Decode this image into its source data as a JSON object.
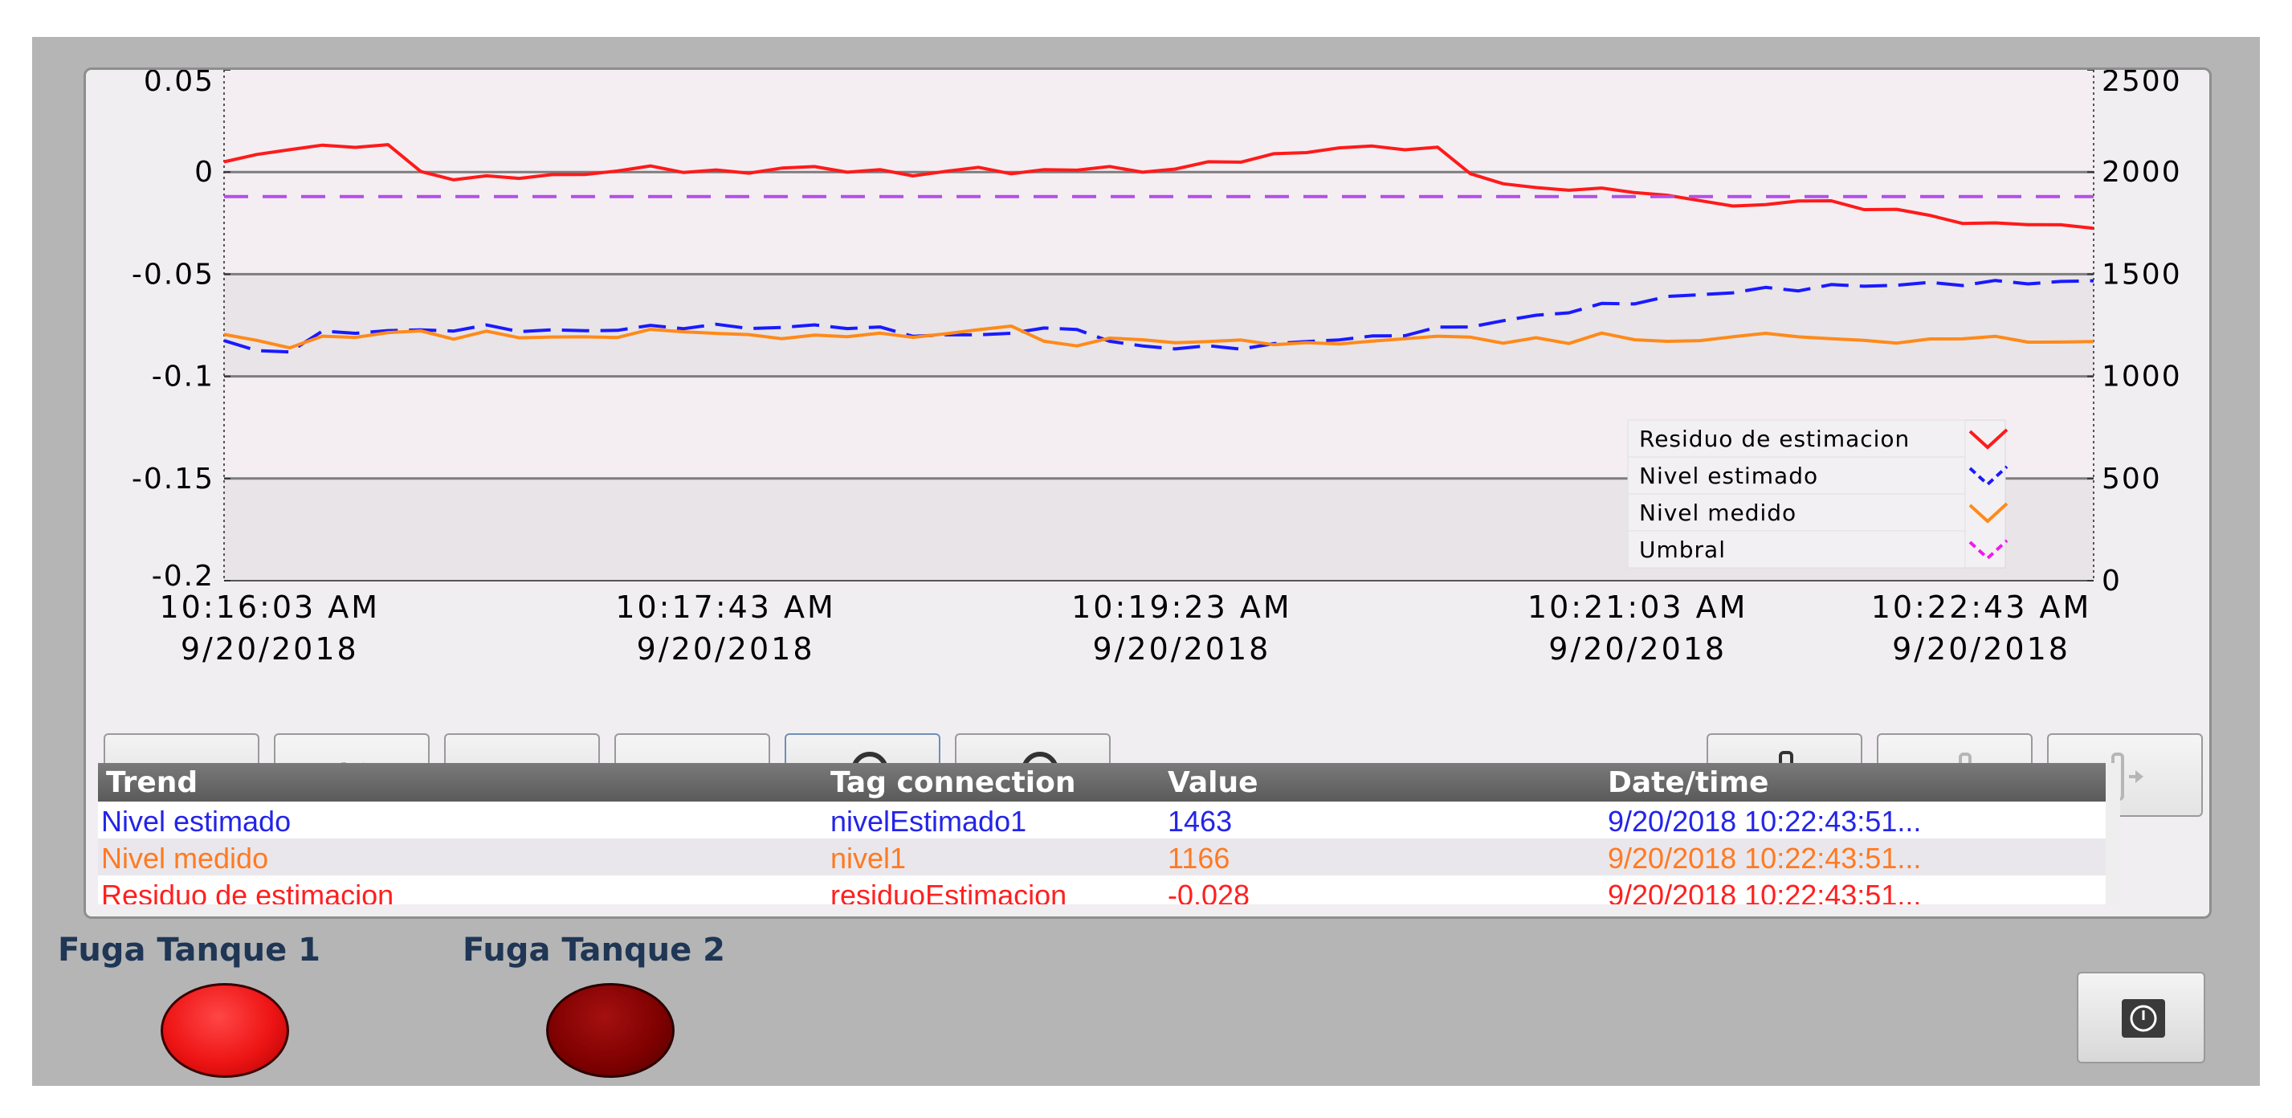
{
  "left_axis": {
    "ticks": [
      "0.05",
      "0",
      "-0.05",
      "-0.1",
      "-0.15",
      "-0.2"
    ]
  },
  "right_axis": {
    "ticks": [
      "2500",
      "2000",
      "1500",
      "1000",
      "500",
      "0"
    ]
  },
  "time_axis": {
    "ticks": [
      {
        "time": "10:16:03 AM",
        "date": "9/20/2018"
      },
      {
        "time": "10:17:43 AM",
        "date": "9/20/2018"
      },
      {
        "time": "10:19:23 AM",
        "date": "9/20/2018"
      },
      {
        "time": "10:21:03 AM",
        "date": "9/20/2018"
      },
      {
        "time": "10:22:43 AM",
        "date": "9/20/2018"
      }
    ]
  },
  "legend": [
    {
      "label": "Residuo de estimacion",
      "color": "#ff1a1a",
      "style": "solid"
    },
    {
      "label": "Nivel estimado",
      "color": "#1a1aff",
      "style": "dashed"
    },
    {
      "label": "Nivel medido",
      "color": "#ff8a1a",
      "style": "solid"
    },
    {
      "label": "Umbral",
      "color": "#ee1aee",
      "style": "dashed"
    }
  ],
  "chart_data": {
    "type": "line",
    "x_range": [
      "10:15:53 AM",
      "10:22:43 AM"
    ],
    "y_left_range": [
      -0.2,
      0.05
    ],
    "y_right_range": [
      0,
      2500
    ],
    "grid": "horizontal",
    "legend_position": "bottom-right",
    "series": [
      {
        "name": "Residuo de estimacion",
        "axis": "left",
        "color": "#ff1a1a",
        "values": [
          0.005,
          0.008,
          0.012,
          0.012,
          0.013,
          0.013,
          0.0,
          -0.003,
          -0.003,
          -0.002,
          -0.002,
          -0.001,
          0.001,
          0.002,
          0.001,
          0.0,
          0.0,
          0.002,
          0.002,
          0.001,
          0.0,
          -0.001,
          0.0,
          0.002,
          0.0,
          0.0,
          0.002,
          0.002,
          0.0,
          0.002,
          0.004,
          0.006,
          0.008,
          0.01,
          0.012,
          0.012,
          0.012,
          0.011,
          0.0,
          -0.006,
          -0.008,
          -0.008,
          -0.009,
          -0.009,
          -0.012,
          -0.014,
          -0.016,
          -0.017,
          -0.013,
          -0.015,
          -0.018,
          -0.018,
          -0.022,
          -0.024,
          -0.026,
          -0.025,
          -0.026,
          -0.028
        ]
      },
      {
        "name": "Nivel estimado",
        "axis": "right",
        "color": "#1a1aff",
        "values": [
          1175,
          1120,
          1130,
          1210,
          1220,
          1220,
          1225,
          1230,
          1240,
          1230,
          1220,
          1225,
          1230,
          1240,
          1245,
          1245,
          1240,
          1240,
          1245,
          1245,
          1230,
          1205,
          1200,
          1200,
          1220,
          1225,
          1240,
          1165,
          1150,
          1140,
          1140,
          1145,
          1150,
          1175,
          1180,
          1190,
          1210,
          1230,
          1250,
          1270,
          1295,
          1320,
          1345,
          1365,
          1385,
          1400,
          1415,
          1425,
          1430,
          1440,
          1445,
          1448,
          1452,
          1456,
          1458,
          1460,
          1463,
          1463
        ]
      },
      {
        "name": "Nivel medido",
        "axis": "right",
        "color": "#ff8a1a",
        "values": [
          1205,
          1170,
          1150,
          1185,
          1200,
          1210,
          1220,
          1190,
          1210,
          1200,
          1185,
          1195,
          1195,
          1220,
          1230,
          1200,
          1210,
          1185,
          1195,
          1205,
          1200,
          1200,
          1205,
          1225,
          1255,
          1160,
          1160,
          1180,
          1180,
          1170,
          1160,
          1190,
          1145,
          1170,
          1160,
          1165,
          1195,
          1185,
          1200,
          1160,
          1185,
          1170,
          1200,
          1190,
          1165,
          1175,
          1200,
          1200,
          1205,
          1175,
          1180,
          1165,
          1175,
          1195,
          1185,
          1175,
          1166,
          1166
        ]
      },
      {
        "name": "Umbral",
        "axis": "left",
        "color": "#ee1aee",
        "values": [
          -0.012,
          -0.012,
          -0.012,
          -0.012,
          -0.012,
          -0.012,
          -0.012,
          -0.012,
          -0.012,
          -0.012,
          -0.012,
          -0.012,
          -0.012,
          -0.012,
          -0.012,
          -0.012,
          -0.012,
          -0.012,
          -0.012,
          -0.012,
          -0.012,
          -0.012,
          -0.012,
          -0.012,
          -0.012,
          -0.012,
          -0.012,
          -0.012,
          -0.012,
          -0.012,
          -0.012,
          -0.012,
          -0.012,
          -0.012,
          -0.012,
          -0.012,
          -0.012,
          -0.012,
          -0.012,
          -0.012,
          -0.012,
          -0.012,
          -0.012,
          -0.012,
          -0.012,
          -0.012,
          -0.012,
          -0.012,
          -0.012,
          -0.012,
          -0.012,
          -0.012,
          -0.012,
          -0.012,
          -0.012,
          -0.012,
          -0.012,
          -0.012
        ]
      }
    ]
  },
  "toolbar": {
    "buttons": [
      {
        "id": "stop",
        "icon": "stop-icon",
        "enabled": true
      },
      {
        "id": "first",
        "icon": "skip-first-icon",
        "enabled": false
      },
      {
        "id": "back",
        "icon": "rewind-icon",
        "enabled": true
      },
      {
        "id": "forward",
        "icon": "fast-forward-icon",
        "enabled": false
      },
      {
        "id": "zoom-in",
        "icon": "zoom-in-icon",
        "enabled": true
      },
      {
        "id": "zoom-out",
        "icon": "zoom-out-icon",
        "enabled": true
      },
      {
        "id": "ruler",
        "icon": "ruler-icon",
        "enabled": true
      },
      {
        "id": "ruler-left",
        "icon": "ruler-left-icon",
        "enabled": false
      },
      {
        "id": "ruler-right",
        "icon": "ruler-right-icon",
        "enabled": false
      }
    ]
  },
  "table": {
    "headers": {
      "trend": "Trend",
      "tag": "Tag connection",
      "value": "Value",
      "datetime": "Date/time"
    },
    "rows": [
      {
        "trend": "Nivel estimado",
        "tag": "nivelEstimado1",
        "value": "1463",
        "datetime": "9/20/2018 10:22:43:51...",
        "color": "#2424e8",
        "bg": "#ffffff"
      },
      {
        "trend": "Nivel medido",
        "tag": "nivel1",
        "value": "1166",
        "datetime": "9/20/2018 10:22:43:51...",
        "color": "#ff7a22",
        "bg": "#e9e7ec"
      },
      {
        "trend": "Residuo de estimacion",
        "tag": "residuoEstimacion",
        "value": "-0.028",
        "datetime": "9/20/2018 10:22:43:51...",
        "color": "#ff2020",
        "bg": "#ffffff"
      }
    ]
  },
  "lamps": [
    {
      "label": "Fuga Tanque 1",
      "state": "on",
      "color": "#ee1515"
    },
    {
      "label": "Fuga Tanque 2",
      "state": "off",
      "color": "#7d0000"
    }
  ],
  "power_button": {
    "icon": "power-icon"
  }
}
